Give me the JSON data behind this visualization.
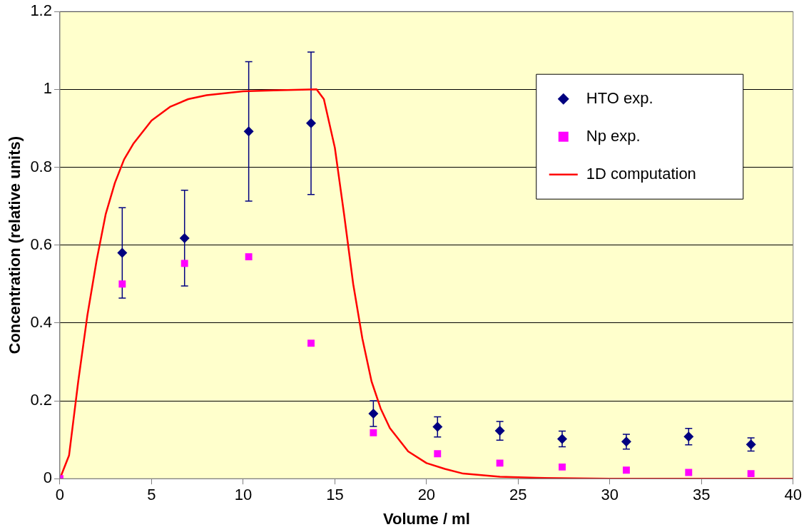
{
  "chart_data": {
    "type": "scatter",
    "xlabel": "Volume / ml",
    "ylabel": "Concentration (relative units)",
    "xlim": [
      0,
      40
    ],
    "xticks": [
      0,
      5,
      10,
      15,
      20,
      25,
      30,
      35,
      40
    ],
    "ylim": [
      0,
      1.2
    ],
    "yticks": [
      0,
      0.2,
      0.4,
      0.6,
      0.8,
      1,
      1.2
    ],
    "grid": "y",
    "legend": "top right",
    "series": [
      {
        "name": "HTO exp.",
        "marker": "diamond",
        "color": "#000080",
        "x": [
          3.4,
          6.8,
          10.3,
          13.7,
          17.1,
          20.6,
          24,
          27.4,
          30.9,
          34.3,
          37.7
        ],
        "values": [
          0.58,
          0.618,
          0.892,
          0.913,
          0.167,
          0.133,
          0.123,
          0.102,
          0.095,
          0.108,
          0.088
        ],
        "errors": [
          0.116,
          0.123,
          0.179,
          0.183,
          0.033,
          0.026,
          0.024,
          0.02,
          0.019,
          0.021,
          0.017
        ]
      },
      {
        "name": "Np exp.",
        "marker": "square",
        "color": "#ff00ff",
        "x": [
          0,
          3.4,
          6.8,
          10.3,
          13.7,
          17.1,
          20.6,
          24,
          27.4,
          30.9,
          34.3,
          37.7
        ],
        "values": [
          0,
          0.5,
          0.553,
          0.57,
          0.348,
          0.118,
          0.064,
          0.04,
          0.03,
          0.022,
          0.016,
          0.013
        ]
      },
      {
        "name": "1D computation",
        "type": "line",
        "marker": "none",
        "color": "#ff0000",
        "x": [
          0,
          0.5,
          1,
          1.5,
          2,
          2.5,
          3,
          3.5,
          4,
          5,
          6,
          7,
          8,
          10,
          12,
          14,
          14.4,
          15,
          15.5,
          16,
          16.5,
          17,
          17.5,
          18,
          19,
          20,
          21,
          22,
          24,
          26,
          30,
          40
        ],
        "values": [
          0,
          0.06,
          0.25,
          0.42,
          0.56,
          0.68,
          0.76,
          0.82,
          0.86,
          0.92,
          0.955,
          0.975,
          0.985,
          0.995,
          0.998,
          1,
          0.975,
          0.85,
          0.68,
          0.5,
          0.36,
          0.25,
          0.18,
          0.13,
          0.07,
          0.04,
          0.025,
          0.013,
          0.005,
          0.002,
          0,
          0
        ]
      }
    ]
  }
}
